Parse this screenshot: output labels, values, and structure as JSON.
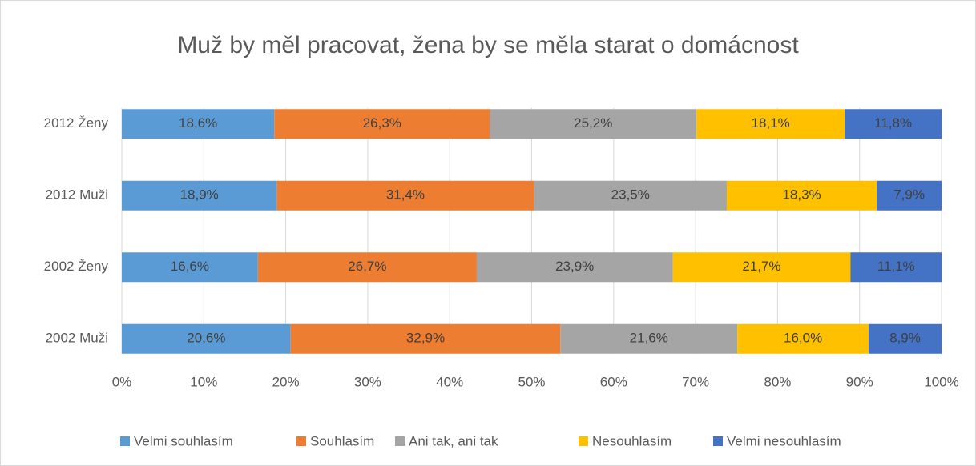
{
  "chart_data": {
    "type": "stacked_barh",
    "title": "Muž by měl pracovat, žena by se měla starat o domácnost",
    "categories": [
      "2012 Ženy",
      "2012 Muži",
      "2002 Ženy",
      "2002 Muži"
    ],
    "series": [
      {
        "name": "Velmi souhlasím",
        "color": "#5b9bd5",
        "values": [
          18.6,
          18.9,
          16.6,
          20.6
        ],
        "value_labels": [
          "18,6%",
          "18,9%",
          "16,6%",
          "20,6%"
        ]
      },
      {
        "name": "Souhlasím",
        "color": "#ed7d31",
        "values": [
          26.3,
          31.4,
          26.7,
          32.9
        ],
        "value_labels": [
          "26,3%",
          "31,4%",
          "26,7%",
          "32,9%"
        ]
      },
      {
        "name": "Ani tak, ani tak",
        "color": "#a5a5a5",
        "values": [
          25.2,
          23.5,
          23.9,
          21.6
        ],
        "value_labels": [
          "25,2%",
          "23,5%",
          "23,9%",
          "21,6%"
        ]
      },
      {
        "name": "Nesouhlasím",
        "color": "#ffc000",
        "values": [
          18.1,
          18.3,
          21.7,
          16.0
        ],
        "value_labels": [
          "18,1%",
          "18,3%",
          "21,7%",
          "16,0%"
        ]
      },
      {
        "name": "Velmi nesouhlasím",
        "color": "#4472c4",
        "values": [
          11.8,
          7.9,
          11.1,
          8.9
        ],
        "value_labels": [
          "11,8%",
          "7,9%",
          "11,1%",
          "8,9%"
        ]
      }
    ],
    "xlim": [
      0,
      100
    ],
    "xticks": [
      {
        "value": 0,
        "label": "0%"
      },
      {
        "value": 10,
        "label": "10%"
      },
      {
        "value": 20,
        "label": "20%"
      },
      {
        "value": 30,
        "label": "30%"
      },
      {
        "value": 40,
        "label": "40%"
      },
      {
        "value": 50,
        "label": "50%"
      },
      {
        "value": 60,
        "label": "60%"
      },
      {
        "value": 70,
        "label": "70%"
      },
      {
        "value": 80,
        "label": "80%"
      },
      {
        "value": 90,
        "label": "90%"
      },
      {
        "value": 100,
        "label": "100%"
      }
    ],
    "grid": true,
    "legend": "bottom"
  }
}
